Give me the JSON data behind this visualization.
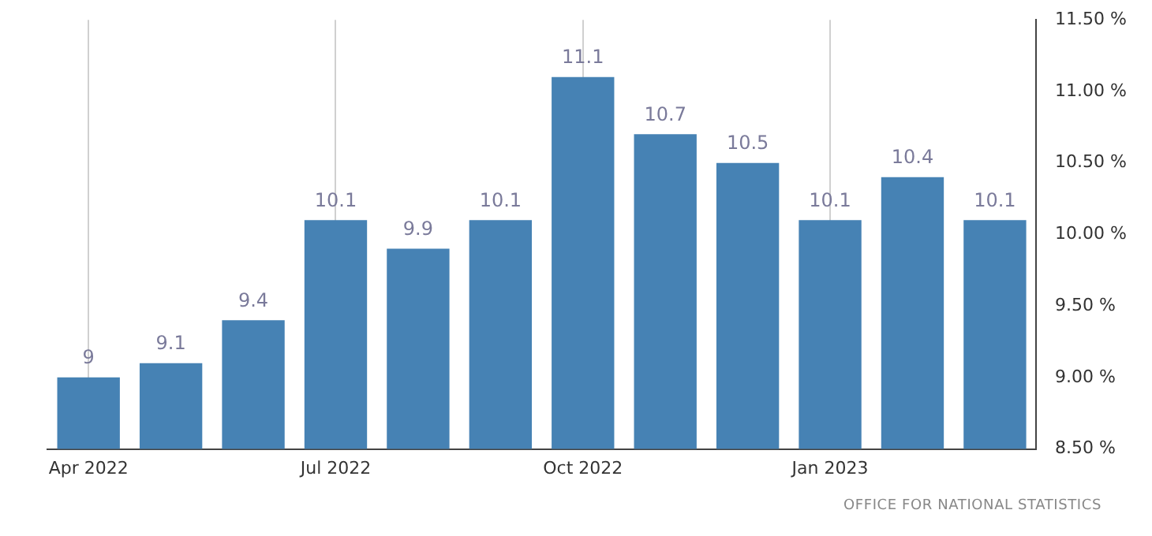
{
  "chart_data": {
    "type": "bar",
    "categories": [
      "Apr 2022",
      null,
      null,
      "Jul 2022",
      null,
      null,
      "Oct 2022",
      null,
      null,
      "Jan 2023",
      null,
      null
    ],
    "values": [
      9,
      9.1,
      9.4,
      10.1,
      9.9,
      10.1,
      11.1,
      10.7,
      10.5,
      10.1,
      10.4,
      10.1
    ],
    "color": "#4682b4",
    "ylim": [
      8.5,
      11.5
    ],
    "yticks": [
      {
        "value": 8.5,
        "label": "8.50 %"
      },
      {
        "value": 9,
        "label": "9.00 %"
      },
      {
        "value": 9.5,
        "label": "9.50 %"
      },
      {
        "value": 10,
        "label": "10.00 %"
      },
      {
        "value": 10.5,
        "label": "10.50 %"
      },
      {
        "value": 11,
        "label": "11.00 %"
      },
      {
        "value": 11.5,
        "label": "11.50 %"
      }
    ],
    "grid": "x",
    "data_labels": true,
    "legend": false,
    "annotations": [
      "OFFICE FOR NATIONAL STATISTICS"
    ]
  }
}
